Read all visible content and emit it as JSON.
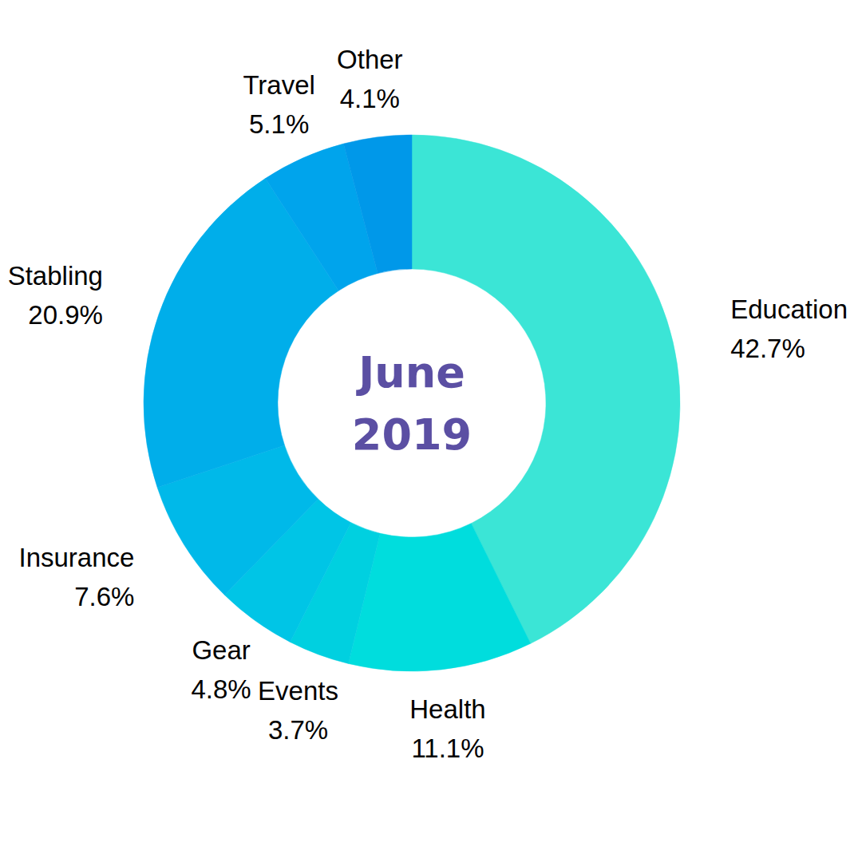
{
  "chart_data": {
    "type": "donut",
    "title": "June 2019",
    "categories": [
      "Education",
      "Health",
      "Events",
      "Gear",
      "Insurance",
      "Stabling",
      "Travel",
      "Other"
    ],
    "values": [
      42.7,
      11.1,
      3.7,
      4.8,
      7.6,
      20.9,
      5.1,
      4.1
    ],
    "value_labels": [
      "42.7%",
      "11.1%",
      "3.7%",
      "4.8%",
      "7.6%",
      "20.9%",
      "5.1%",
      "4.1%"
    ],
    "colors": [
      "#3be5d6",
      "#00dddd",
      "#00d0e0",
      "#00c5e6",
      "#00b9e9",
      "#00aeea",
      "#00a4ec",
      "#0098e9"
    ],
    "data_labels": true
  }
}
